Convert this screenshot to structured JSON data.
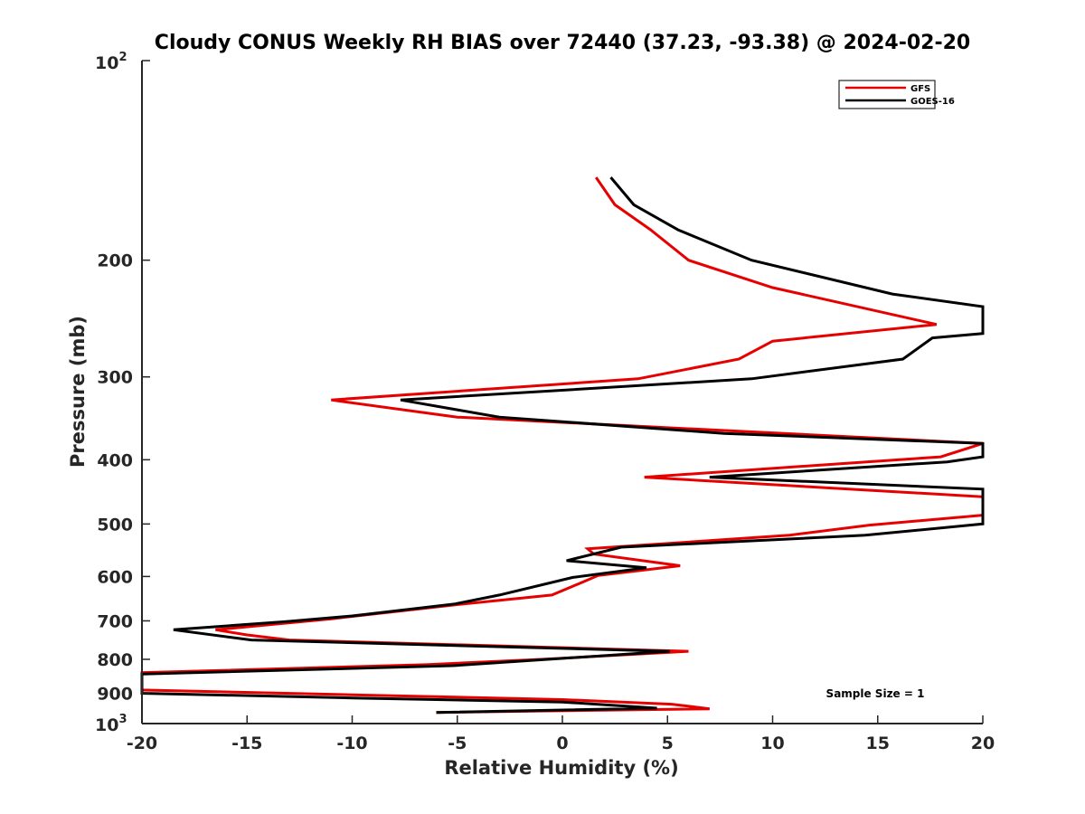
{
  "chart_data": {
    "type": "line",
    "title": "Cloudy CONUS Weekly RH BIAS over 72440 (37.23, -93.38) @ 2024-02-20",
    "xlabel": "Relative Humidity (%)",
    "ylabel": "Pressure (mb)",
    "xlim": [
      -20,
      20
    ],
    "ylim": [
      100,
      1000
    ],
    "y_scale": "log",
    "y_reversed": true,
    "grid": false,
    "legend_position": "top-right",
    "x_ticks": [
      "-20",
      "-15",
      "-10",
      "-5",
      "0",
      "5",
      "10",
      "15",
      "20"
    ],
    "y_ticks": [
      "200",
      "300",
      "400",
      "500",
      "600",
      "700",
      "800",
      "900"
    ],
    "y_tick_values": [
      200,
      300,
      400,
      500,
      600,
      700,
      800,
      900
    ],
    "y_top_tick": {
      "base": "10",
      "exp": "2"
    },
    "y_bottom_tick": {
      "base": "10",
      "exp": "3"
    },
    "annotation": "Sample Size = 1",
    "series": [
      {
        "name": "GFS",
        "color": "#e60000",
        "points": [
          [
            1.6,
            150
          ],
          [
            2.5,
            165
          ],
          [
            4.2,
            180
          ],
          [
            6.0,
            200
          ],
          [
            10.0,
            220
          ],
          [
            17.8,
            250
          ],
          [
            10.0,
            265
          ],
          [
            8.4,
            282
          ],
          [
            3.6,
            302
          ],
          [
            -11.0,
            325
          ],
          [
            -5.0,
            345
          ],
          [
            20.0,
            378
          ],
          [
            18.0,
            396
          ],
          [
            3.9,
            425
          ],
          [
            20.0,
            455
          ],
          [
            20.0,
            485
          ],
          [
            14.6,
            502
          ],
          [
            10.8,
            520
          ],
          [
            1.2,
            545
          ],
          [
            1.5,
            555
          ],
          [
            5.6,
            578
          ],
          [
            1.7,
            598
          ],
          [
            0.8,
            615
          ],
          [
            -0.5,
            640
          ],
          [
            -5.1,
            662
          ],
          [
            -11.0,
            695
          ],
          [
            -16.5,
            722
          ],
          [
            -15.0,
            735
          ],
          [
            -13.0,
            748
          ],
          [
            6.0,
            778
          ],
          [
            -1.0,
            800
          ],
          [
            -6.5,
            815
          ],
          [
            -20.0,
            838
          ],
          [
            -20.0,
            890
          ],
          [
            -10.0,
            905
          ],
          [
            0.0,
            920
          ],
          [
            5.2,
            935
          ],
          [
            7.0,
            950
          ],
          [
            -6.0,
            962
          ]
        ]
      },
      {
        "name": "GOES-16",
        "color": "#000000",
        "points": [
          [
            2.3,
            150
          ],
          [
            3.4,
            165
          ],
          [
            5.5,
            180
          ],
          [
            9.0,
            200
          ],
          [
            15.7,
            225
          ],
          [
            20.0,
            235
          ],
          [
            20.0,
            258
          ],
          [
            17.6,
            262
          ],
          [
            16.2,
            282
          ],
          [
            9.0,
            302
          ],
          [
            -7.7,
            325
          ],
          [
            -3.0,
            345
          ],
          [
            7.7,
            365
          ],
          [
            20.0,
            378
          ],
          [
            20.0,
            396
          ],
          [
            18.3,
            403
          ],
          [
            7.0,
            425
          ],
          [
            20.0,
            443
          ],
          [
            20.0,
            500
          ],
          [
            14.4,
            520
          ],
          [
            2.8,
            542
          ],
          [
            0.2,
            568
          ],
          [
            4.0,
            582
          ],
          [
            0.5,
            602
          ],
          [
            -3.0,
            640
          ],
          [
            -5.1,
            660
          ],
          [
            -10.0,
            688
          ],
          [
            -13.2,
            702
          ],
          [
            -18.5,
            722
          ],
          [
            -14.8,
            748
          ],
          [
            5.1,
            778
          ],
          [
            -5.2,
            818
          ],
          [
            -20.0,
            842
          ],
          [
            -20.0,
            900
          ],
          [
            -10.0,
            915
          ],
          [
            0.0,
            928
          ],
          [
            4.5,
            948
          ],
          [
            -6.0,
            962
          ]
        ]
      }
    ]
  }
}
